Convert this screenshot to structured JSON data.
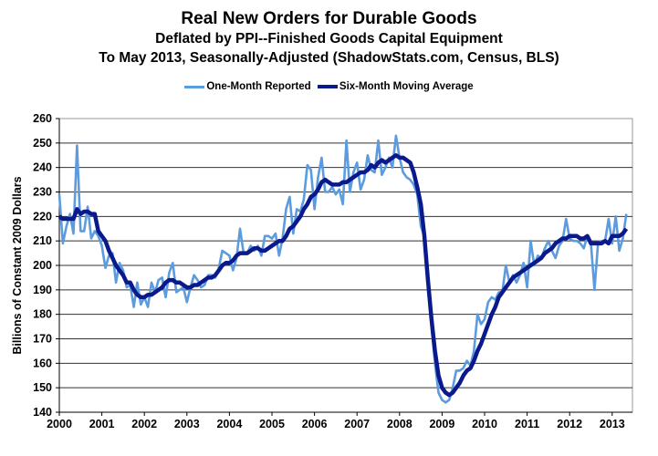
{
  "chart_data": {
    "type": "line",
    "title": "Real New Orders for Durable Goods",
    "subtitle": [
      "Deflated by PPI--Finished Goods Capital Equipment",
      "To May 2013, Seasonally-Adjusted  (ShadowStats.com, Census, BLS)"
    ],
    "ylabel": "Billions of Constant 2009 Dollars",
    "xlabel": "",
    "ylim": [
      140,
      260
    ],
    "yticks": [
      "140",
      "150",
      "160",
      "170",
      "180",
      "190",
      "200",
      "210",
      "220",
      "230",
      "240",
      "250",
      "260"
    ],
    "xticks": [
      "2000",
      "2001",
      "2002",
      "2003",
      "2004",
      "2005",
      "2006",
      "2007",
      "2008",
      "2009",
      "2010",
      "2011",
      "2012",
      "2013"
    ],
    "x_start": "2000-01",
    "x_frequency": "monthly",
    "grid": "horizontal",
    "legend": "top-center",
    "series": [
      {
        "name": "One-Month Reported",
        "color": "#5b9bde",
        "values": [
          229,
          209,
          216,
          221,
          213,
          249,
          214,
          214,
          224,
          211,
          214,
          212,
          208,
          199,
          204,
          205,
          193,
          201,
          198,
          191,
          192,
          183,
          193,
          184,
          187,
          183,
          193,
          189,
          194,
          195,
          187,
          197,
          201,
          189,
          190,
          191,
          185,
          191,
          196,
          194,
          191,
          192,
          196,
          196,
          195,
          199,
          206,
          205,
          204,
          198,
          203,
          215,
          205,
          205,
          208,
          206,
          208,
          204,
          212,
          212,
          211,
          213,
          204,
          211,
          223,
          228,
          213,
          223,
          222,
          227,
          241,
          239,
          223,
          236,
          244,
          230,
          230,
          232,
          229,
          231,
          225,
          251,
          230,
          238,
          242,
          231,
          235,
          245,
          239,
          238,
          251,
          237,
          240,
          244,
          240,
          253,
          244,
          238,
          236,
          235,
          233,
          229,
          216,
          212,
          195,
          175,
          160,
          148,
          145,
          144,
          145,
          150,
          157,
          157,
          158,
          161,
          159,
          165,
          180,
          176,
          178,
          185,
          187,
          186,
          189,
          189,
          200,
          193,
          196,
          193,
          196,
          201,
          191,
          210,
          200,
          204,
          203,
          207,
          210,
          206,
          203,
          208,
          210,
          219,
          211,
          210,
          210,
          209,
          207,
          212,
          209,
          190,
          209,
          210,
          210,
          219,
          209,
          220,
          206,
          211,
          221
        ]
      },
      {
        "name": "Six-Month Moving Average",
        "color": "#0a1a8c",
        "values": [
          220,
          219,
          219,
          219,
          219,
          223,
          221,
          222,
          222,
          221,
          221,
          214,
          212,
          210,
          206,
          203,
          200,
          198,
          196,
          193,
          193,
          190,
          188,
          187,
          187,
          188,
          188,
          189,
          190,
          191,
          193,
          194,
          194,
          193,
          193,
          192,
          191,
          191,
          192,
          192,
          193,
          194,
          195,
          195,
          196,
          198,
          200,
          201,
          201,
          202,
          204,
          205,
          205,
          205,
          206,
          207,
          207,
          206,
          206,
          207,
          208,
          209,
          210,
          210,
          212,
          215,
          216,
          218,
          220,
          223,
          225,
          228,
          229,
          231,
          234,
          235,
          234,
          233,
          233,
          233,
          234,
          234,
          235,
          236,
          237,
          238,
          238,
          239,
          241,
          240,
          242,
          243,
          242,
          243,
          244,
          245,
          244,
          244,
          243,
          242,
          238,
          232,
          225,
          212,
          194,
          178,
          165,
          155,
          150,
          148,
          147,
          148,
          150,
          152,
          155,
          157,
          158,
          161,
          165,
          168,
          172,
          176,
          180,
          183,
          187,
          189,
          191,
          193,
          195,
          196,
          197,
          198,
          199,
          200,
          201,
          202,
          203,
          205,
          206,
          207,
          209,
          210,
          211,
          211,
          212,
          212,
          212,
          211,
          211,
          212,
          209,
          209,
          209,
          209,
          210,
          209,
          212,
          212,
          212,
          213,
          215
        ]
      }
    ]
  }
}
